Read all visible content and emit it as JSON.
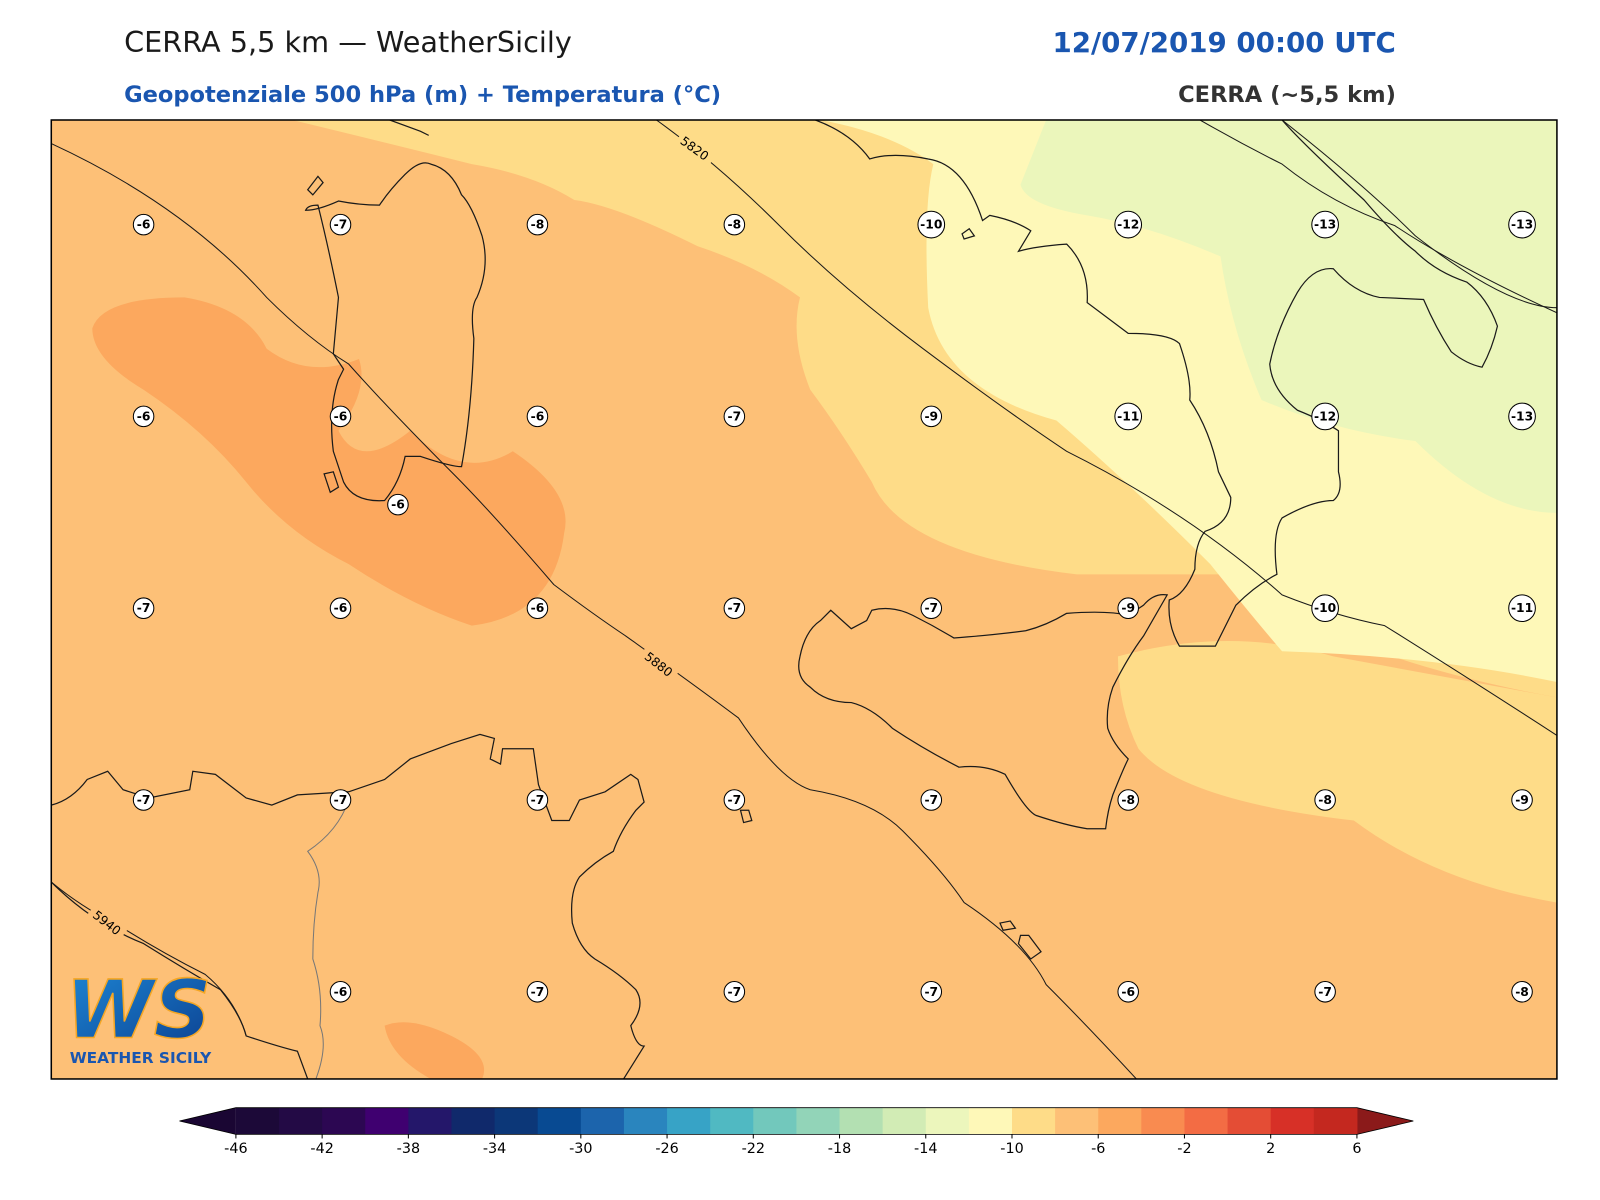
{
  "header": {
    "title": "CERRA 5,5 km — WeatherSicily",
    "datetime": "12/07/2019 00:00 UTC",
    "subtitle": "Geopotenziale 500 hPa (m) + Temperatura (°C)",
    "model": "CERRA (~5,5 km)"
  },
  "temperature_labels": {
    "rows": [
      [
        -6,
        -7,
        -8,
        -8,
        -10,
        -12,
        -13,
        -13
      ],
      [
        -6,
        -6,
        -6,
        -7,
        -9,
        -11,
        -12,
        -13
      ],
      [
        -7,
        -6,
        -6,
        -7,
        -7,
        -9,
        -10,
        -11
      ],
      [
        -7,
        -7,
        -7,
        -7,
        -7,
        -8,
        -8,
        -9
      ],
      [
        null,
        -6,
        -7,
        -7,
        -7,
        -6,
        -7,
        -8
      ]
    ],
    "extra": -6
  },
  "contour_labels": [
    5820,
    5880,
    5940
  ],
  "colorbar": {
    "levels": [
      -46,
      -44,
      -42,
      -40,
      -38,
      -36,
      -34,
      -32,
      -30,
      -28,
      -26,
      -24,
      -22,
      -20,
      -18,
      -16,
      -14,
      -12,
      -10,
      -8,
      -6,
      -4,
      -2,
      0,
      2,
      4,
      6
    ],
    "ticks": [
      -46,
      -42,
      -38,
      -34,
      -30,
      -26,
      -22,
      -18,
      -14,
      -10,
      -6,
      -2,
      2,
      6
    ],
    "colors": [
      "#1c0938",
      "#230a45",
      "#2c0752",
      "#3f0070",
      "#24176a",
      "#10296b",
      "#0c3778",
      "#084a92",
      "#1c64ac",
      "#2a85be",
      "#37a3c6",
      "#50b9c2",
      "#72c8bc",
      "#92d4b8",
      "#b3e0b2",
      "#d2ecb5",
      "#ecf6bc",
      "#fef8b8",
      "#fedc88",
      "#fdc077",
      "#fca85e",
      "#f98b50",
      "#f36c44",
      "#e44d35",
      "#d73027",
      "#c4281f"
    ],
    "under_color": "#1a0633",
    "over_color": "#8b1a1a"
  },
  "logo": {
    "initials": "WS",
    "name": "WEATHER SICILY"
  }
}
